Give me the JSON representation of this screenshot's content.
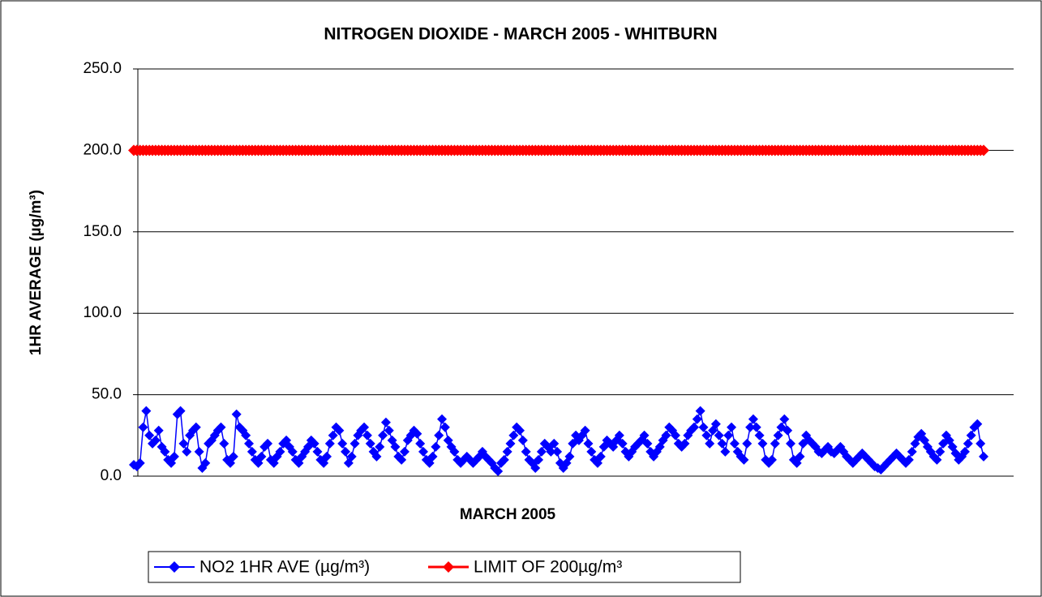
{
  "chart_data": {
    "type": "line",
    "title": "NITROGEN DIOXIDE - MARCH 2005 - WHITBURN",
    "xlabel": "MARCH 2005",
    "ylabel": "1HR AVERAGE (µg/m³)",
    "ylim": [
      0,
      250
    ],
    "yticks": [
      {
        "value": 0,
        "label": "0.0"
      },
      {
        "value": 50,
        "label": "50.0"
      },
      {
        "value": 100,
        "label": "100.0"
      },
      {
        "value": 150,
        "label": "150.0"
      },
      {
        "value": 200,
        "label": "200.0"
      },
      {
        "value": 250,
        "label": "250.0"
      }
    ],
    "grid": true,
    "legend": "bottom",
    "series": [
      {
        "name": "NO2 1HR AVE (µg/m³)",
        "color": "#0000ff",
        "values": [
          7,
          6,
          8,
          30,
          40,
          25,
          20,
          22,
          28,
          18,
          15,
          10,
          8,
          12,
          38,
          40,
          20,
          15,
          25,
          28,
          30,
          15,
          5,
          8,
          20,
          22,
          25,
          28,
          30,
          20,
          10,
          8,
          12,
          38,
          30,
          28,
          25,
          20,
          15,
          10,
          8,
          12,
          18,
          20,
          10,
          8,
          12,
          15,
          20,
          22,
          18,
          15,
          10,
          8,
          12,
          15,
          18,
          22,
          20,
          15,
          10,
          8,
          12,
          20,
          25,
          30,
          28,
          20,
          15,
          8,
          12,
          20,
          25,
          28,
          30,
          25,
          20,
          15,
          12,
          18,
          25,
          33,
          28,
          22,
          18,
          12,
          10,
          15,
          22,
          25,
          28,
          26,
          20,
          15,
          10,
          8,
          12,
          18,
          25,
          35,
          30,
          22,
          18,
          15,
          10,
          8,
          10,
          12,
          10,
          8,
          10,
          12,
          15,
          12,
          10,
          8,
          5,
          3,
          8,
          10,
          15,
          20,
          25,
          30,
          28,
          22,
          15,
          10,
          8,
          5,
          10,
          15,
          20,
          18,
          15,
          20,
          15,
          8,
          5,
          8,
          12,
          20,
          25,
          22,
          25,
          28,
          20,
          15,
          10,
          8,
          12,
          18,
          22,
          20,
          18,
          22,
          25,
          20,
          15,
          12,
          15,
          18,
          20,
          22,
          25,
          20,
          15,
          12,
          15,
          18,
          22,
          25,
          30,
          28,
          25,
          20,
          18,
          20,
          25,
          28,
          30,
          35,
          40,
          30,
          25,
          20,
          28,
          32,
          25,
          20,
          15,
          25,
          30,
          20,
          15,
          12,
          10,
          20,
          30,
          35,
          30,
          25,
          20,
          10,
          8,
          10,
          20,
          25,
          30,
          35,
          28,
          20,
          10,
          8,
          12,
          20,
          25,
          22,
          20,
          18,
          15,
          14,
          16,
          18,
          15,
          14,
          16,
          18,
          15,
          12,
          10,
          8,
          10,
          12,
          14,
          12,
          10,
          8,
          6,
          5,
          4,
          6,
          8,
          10,
          12,
          14,
          12,
          10,
          8,
          10,
          15,
          20,
          24,
          26,
          22,
          18,
          15,
          12,
          10,
          15,
          20,
          25,
          22,
          18,
          14,
          10,
          12,
          15,
          20,
          25,
          30,
          32,
          20,
          12
        ]
      },
      {
        "name": "LIMIT OF 200µg/m³",
        "color": "#ff0000",
        "values": [
          200,
          200,
          200,
          200,
          200,
          200,
          200,
          200,
          200,
          200,
          200,
          200,
          200,
          200,
          200,
          200,
          200,
          200,
          200,
          200,
          200,
          200,
          200,
          200,
          200,
          200,
          200,
          200,
          200,
          200,
          200,
          200,
          200,
          200,
          200,
          200,
          200,
          200,
          200,
          200,
          200,
          200,
          200,
          200,
          200,
          200,
          200,
          200,
          200,
          200,
          200,
          200,
          200,
          200,
          200,
          200,
          200,
          200,
          200,
          200,
          200,
          200,
          200,
          200,
          200,
          200,
          200,
          200,
          200,
          200,
          200,
          200,
          200,
          200,
          200,
          200,
          200,
          200,
          200,
          200,
          200,
          200,
          200,
          200,
          200,
          200,
          200,
          200,
          200,
          200,
          200,
          200,
          200,
          200,
          200,
          200,
          200,
          200,
          200,
          200,
          200,
          200,
          200,
          200,
          200,
          200,
          200,
          200,
          200,
          200,
          200,
          200,
          200,
          200,
          200,
          200,
          200,
          200,
          200,
          200,
          200,
          200,
          200,
          200,
          200,
          200,
          200,
          200,
          200,
          200,
          200,
          200,
          200,
          200,
          200,
          200,
          200,
          200,
          200,
          200,
          200,
          200,
          200,
          200,
          200,
          200,
          200,
          200,
          200,
          200,
          200,
          200,
          200,
          200,
          200,
          200,
          200,
          200,
          200,
          200,
          200,
          200,
          200,
          200,
          200,
          200,
          200,
          200,
          200,
          200,
          200,
          200,
          200,
          200,
          200,
          200,
          200,
          200,
          200,
          200,
          200,
          200,
          200,
          200,
          200,
          200,
          200,
          200,
          200,
          200,
          200,
          200,
          200,
          200,
          200,
          200,
          200,
          200,
          200,
          200,
          200,
          200,
          200,
          200,
          200,
          200,
          200,
          200,
          200,
          200,
          200,
          200,
          200,
          200,
          200,
          200,
          200,
          200,
          200,
          200,
          200,
          200,
          200,
          200,
          200,
          200,
          200,
          200,
          200,
          200,
          200,
          200,
          200,
          200,
          200,
          200,
          200,
          200,
          200,
          200,
          200,
          200,
          200,
          200,
          200,
          200,
          200,
          200,
          200,
          200,
          200,
          200,
          200,
          200,
          200,
          200,
          200,
          200,
          200,
          200,
          200,
          200,
          200,
          200,
          200,
          200,
          200,
          200,
          200,
          200,
          200,
          200,
          200,
          200
        ]
      }
    ]
  }
}
